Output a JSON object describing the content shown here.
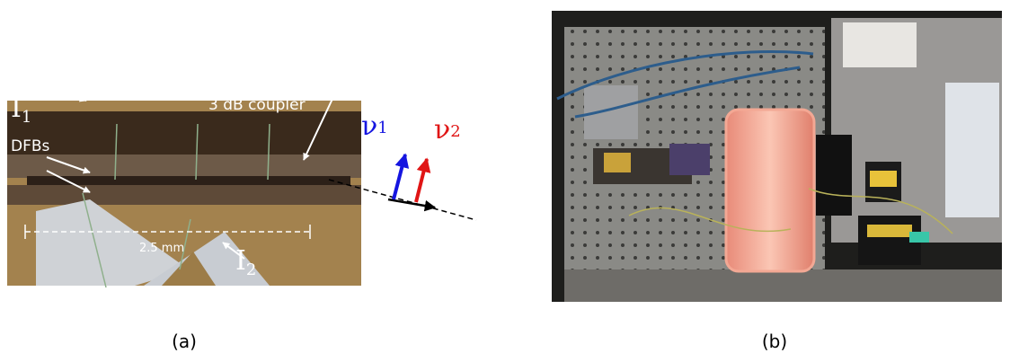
{
  "panel_a": {
    "i1": {
      "main": "I",
      "sub": "1"
    },
    "coupler": "3 dB coupler",
    "dfbs": "DFBs",
    "length": "2.5 mm",
    "i2": {
      "main": "I",
      "sub": "2"
    },
    "nu1": {
      "main": "ν",
      "sub": "1"
    },
    "nu2": {
      "main": "ν",
      "sub": "2"
    },
    "caption": "(a)"
  },
  "panel_b": {
    "caption": "(b)"
  }
}
